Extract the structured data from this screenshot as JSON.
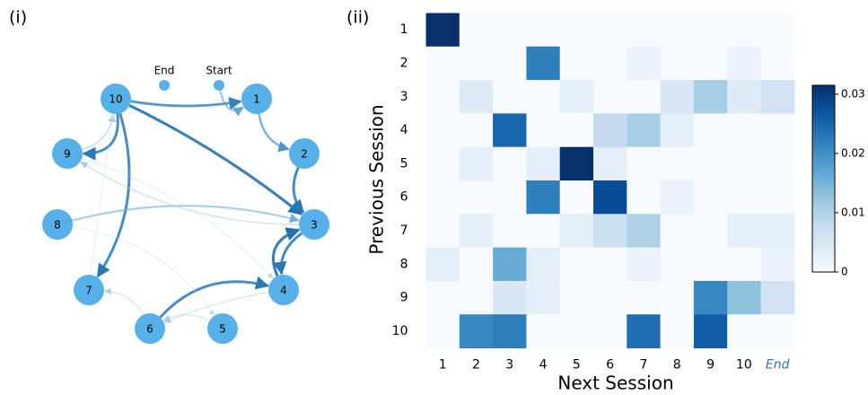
{
  "chart_data": [
    {
      "type": "network",
      "panel": "(i)",
      "nodes": [
        "1",
        "2",
        "3",
        "4",
        "5",
        "6",
        "7",
        "8",
        "9",
        "10",
        "End",
        "Start"
      ],
      "edges": [
        {
          "source": 9,
          "target": 8,
          "value": 0.8
        },
        {
          "source": 8,
          "target": 9,
          "value": 0.3
        },
        {
          "source": 9,
          "target": 6,
          "value": 0.8
        },
        {
          "source": 9,
          "target": 2,
          "value": 0.85
        },
        {
          "source": 9,
          "target": 0,
          "value": 0.75
        },
        {
          "source": 11,
          "target": 0,
          "value": 0.5
        },
        {
          "source": 0,
          "target": 1,
          "value": 0.6
        },
        {
          "source": 1,
          "target": 2,
          "value": 0.8
        },
        {
          "source": 2,
          "target": 3,
          "value": 0.8
        },
        {
          "source": 3,
          "target": 2,
          "value": 0.85
        },
        {
          "source": 5,
          "target": 3,
          "value": 0.8
        },
        {
          "source": 7,
          "target": 2,
          "value": 0.45
        },
        {
          "source": 2,
          "target": 8,
          "value": 0.25
        },
        {
          "source": 5,
          "target": 6,
          "value": 0.2
        },
        {
          "source": 4,
          "target": 5,
          "value": 0.2
        },
        {
          "source": 3,
          "target": 5,
          "value": 0.2
        },
        {
          "source": 6,
          "target": 9,
          "value": 0.1
        },
        {
          "source": 7,
          "target": 4,
          "value": 0.1
        },
        {
          "source": 8,
          "target": 3,
          "value": 0.1
        }
      ]
    },
    {
      "type": "heatmap",
      "panel": "(ii)",
      "x_label": "Next Session",
      "y_label": "Previous Session",
      "x_categories": [
        "1",
        "2",
        "3",
        "4",
        "5",
        "6",
        "7",
        "8",
        "9",
        "10",
        "End"
      ],
      "y_categories": [
        "1",
        "2",
        "3",
        "4",
        "5",
        "6",
        "7",
        "8",
        "9",
        "10"
      ],
      "values": [
        [
          0.032,
          0,
          0,
          0,
          0,
          0,
          0,
          0,
          0,
          0,
          0
        ],
        [
          0,
          0,
          0,
          0.022,
          0,
          0,
          0.002,
          0,
          0,
          0.002,
          0
        ],
        [
          0,
          0.004,
          0,
          0,
          0.003,
          0,
          0,
          0.005,
          0.011,
          0.004,
          0.006
        ],
        [
          0,
          0,
          0.025,
          0,
          0,
          0.008,
          0.011,
          0.003,
          0,
          0,
          0
        ],
        [
          0,
          0.003,
          0,
          0.003,
          0.032,
          0.003,
          0,
          0,
          0,
          0,
          0
        ],
        [
          0,
          0,
          0,
          0.022,
          0,
          0.028,
          0,
          0.002,
          0,
          0,
          0
        ],
        [
          0,
          0.003,
          0,
          0,
          0.003,
          0.007,
          0.01,
          0,
          0,
          0.003,
          0.003
        ],
        [
          0.003,
          0,
          0.016,
          0.003,
          0,
          0,
          0.002,
          0,
          0,
          0,
          0.002
        ],
        [
          0,
          0,
          0.005,
          0.003,
          0,
          0,
          0,
          0,
          0.021,
          0.013,
          0.006
        ],
        [
          0,
          0.021,
          0.022,
          0,
          0,
          0,
          0.024,
          0,
          0.026,
          0,
          0
        ]
      ],
      "clim": [
        0,
        0.0315
      ],
      "cticks": [
        0,
        0.01,
        0.02,
        0.03
      ]
    }
  ]
}
